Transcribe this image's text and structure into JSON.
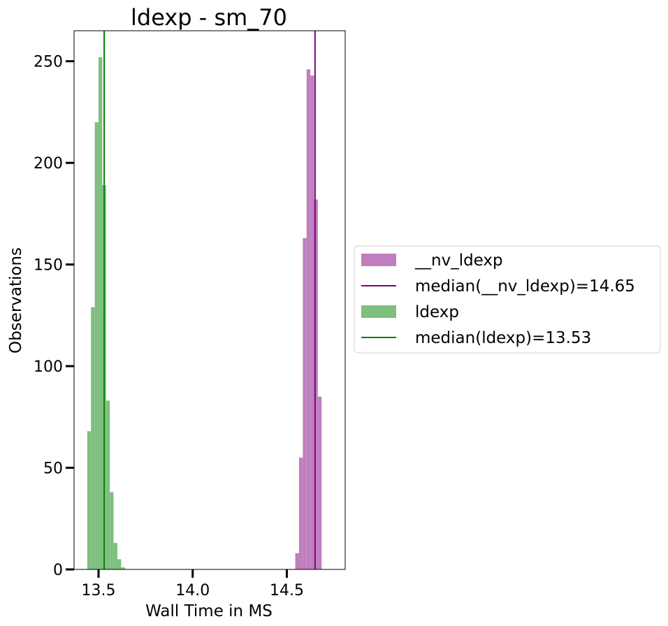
{
  "chart_data": {
    "type": "bar",
    "title": "ldexp - sm_70",
    "xlabel": "Wall Time in MS",
    "ylabel": "Observations",
    "xlim": [
      13.37,
      14.81
    ],
    "ylim": [
      0,
      265
    ],
    "xticks": [
      13.5,
      14.0,
      14.5
    ],
    "xtick_labels": [
      "13.5",
      "14.0",
      "14.5"
    ],
    "yticks": [
      0,
      50,
      100,
      150,
      200,
      250
    ],
    "ytick_labels": [
      "0",
      "50",
      "100",
      "150",
      "200",
      "250"
    ],
    "grid": false,
    "legend_placement": "right, outside plot",
    "series": [
      {
        "name": "__nv_ldexp",
        "color": "#bf7fbf",
        "bins": [
          {
            "x0": 14.545,
            "x1": 14.565,
            "count": 8
          },
          {
            "x0": 14.565,
            "x1": 14.585,
            "count": 55
          },
          {
            "x0": 14.585,
            "x1": 14.605,
            "count": 163
          },
          {
            "x0": 14.605,
            "x1": 14.625,
            "count": 246
          },
          {
            "x0": 14.625,
            "x1": 14.645,
            "count": 243
          },
          {
            "x0": 14.645,
            "x1": 14.665,
            "count": 182
          },
          {
            "x0": 14.665,
            "x1": 14.685,
            "count": 85
          }
        ]
      },
      {
        "name": "ldexp",
        "color": "#7fbf7f",
        "bins": [
          {
            "x0": 13.44,
            "x1": 13.46,
            "count": 68
          },
          {
            "x0": 13.46,
            "x1": 13.48,
            "count": 129
          },
          {
            "x0": 13.48,
            "x1": 13.5,
            "count": 220
          },
          {
            "x0": 13.5,
            "x1": 13.52,
            "count": 252
          },
          {
            "x0": 13.52,
            "x1": 13.54,
            "count": 189
          },
          {
            "x0": 13.54,
            "x1": 13.56,
            "count": 83
          },
          {
            "x0": 13.56,
            "x1": 13.58,
            "count": 38
          },
          {
            "x0": 13.58,
            "x1": 13.6,
            "count": 13
          },
          {
            "x0": 13.6,
            "x1": 13.62,
            "count": 5
          },
          {
            "x0": 13.62,
            "x1": 13.64,
            "count": 1
          }
        ]
      }
    ],
    "medians": [
      {
        "name": "median(__nv_ldexp)=14.65",
        "value": 14.65,
        "color": "#800080"
      },
      {
        "name": "median(ldexp)=13.53",
        "value": 13.53,
        "color": "#008000"
      }
    ],
    "legend": [
      {
        "kind": "patch",
        "label": "__nv_ldexp",
        "color": "#bf7fbf"
      },
      {
        "kind": "line",
        "label": "median(__nv_ldexp)=14.65",
        "color": "#800080"
      },
      {
        "kind": "patch",
        "label": "ldexp",
        "color": "#7fbf7f"
      },
      {
        "kind": "line",
        "label": "median(ldexp)=13.53",
        "color": "#008000"
      }
    ]
  }
}
